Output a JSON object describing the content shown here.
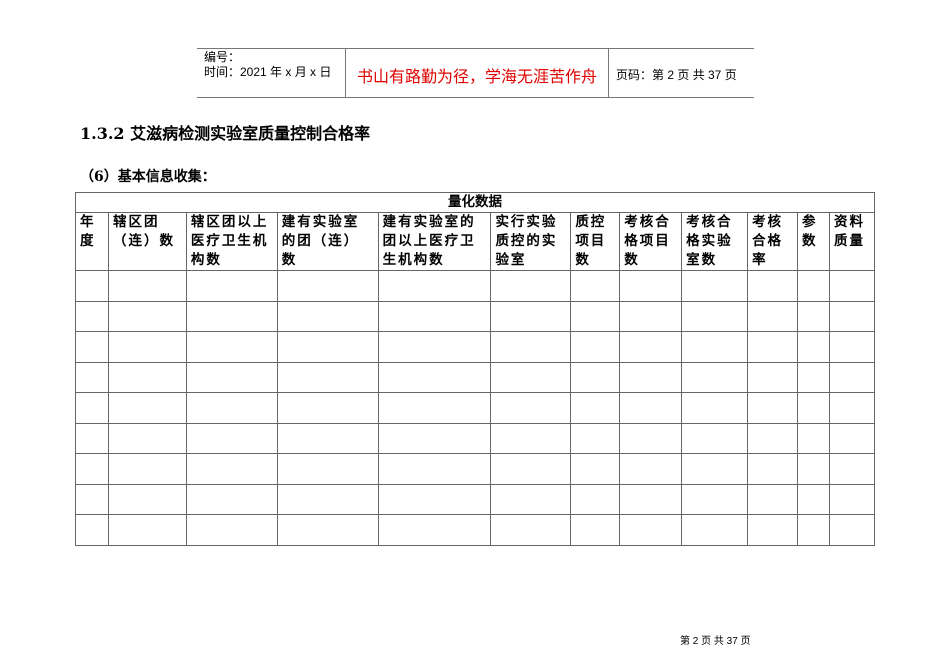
{
  "header": {
    "number_label": "编号：",
    "time_label": "时间：2021 年 x 月 x 日",
    "motto": "书山有路勤为径，学海无涯苦作舟",
    "page_info": "页码：第 2 页  共 37 页"
  },
  "section_title": "1.3.2 艾滋病检测实验室质量控制合格率",
  "subsection_title": "（6）基本信息收集：",
  "table": {
    "group_header": "量化数据",
    "columns": [
      "年度",
      "辖区团（连）数",
      "辖区团以上医疗卫生机构数",
      "建有实验室的团（连）数",
      "建有实验室的团以上医疗卫生机构数",
      "实行实验质控的实验室",
      "质控项目数",
      "考核合格项目数",
      "考核合格实验室数",
      "考核合格率",
      "参数",
      "资料质量"
    ],
    "rows": [
      [],
      [],
      [],
      [],
      [],
      [],
      [],
      [],
      []
    ]
  },
  "footer": "第 2 页 共 37 页"
}
